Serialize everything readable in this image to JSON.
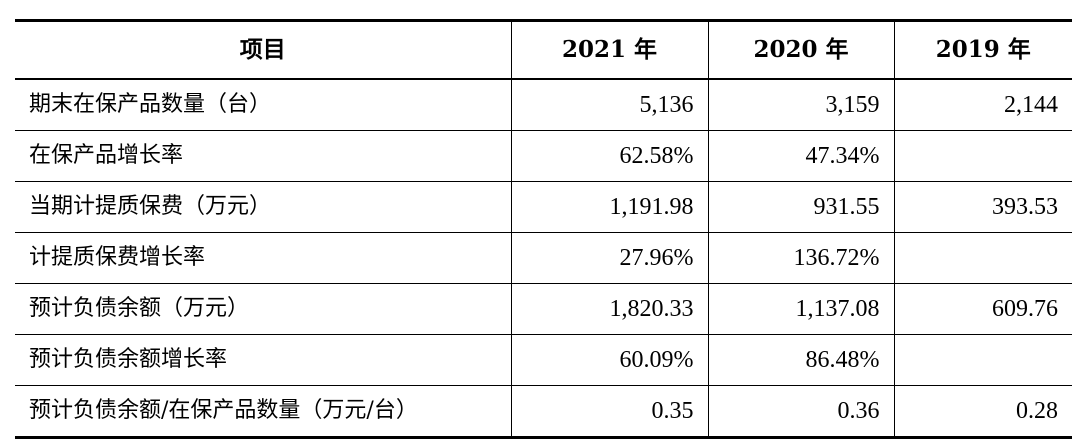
{
  "table": {
    "headers": [
      "项目",
      "2021 年",
      "2020 年",
      "2019 年"
    ],
    "rows": [
      {
        "label": "期末在保产品数量（台）",
        "y2021": "5,136",
        "y2020": "3,159",
        "y2019": "2,144"
      },
      {
        "label": "在保产品增长率",
        "y2021": "62.58%",
        "y2020": "47.34%",
        "y2019": ""
      },
      {
        "label": "当期计提质保费（万元）",
        "y2021": "1,191.98",
        "y2020": "931.55",
        "y2019": "393.53"
      },
      {
        "label": "计提质保费增长率",
        "y2021": "27.96%",
        "y2020": "136.72%",
        "y2019": ""
      },
      {
        "label": "预计负债余额（万元）",
        "y2021": "1,820.33",
        "y2020": "1,137.08",
        "y2019": "609.76"
      },
      {
        "label": "预计负债余额增长率",
        "y2021": "60.09%",
        "y2020": "86.48%",
        "y2019": ""
      },
      {
        "label": "预计负债余额/在保产品数量（万元/台）",
        "y2021": "0.35",
        "y2020": "0.36",
        "y2019": "0.28"
      }
    ]
  }
}
